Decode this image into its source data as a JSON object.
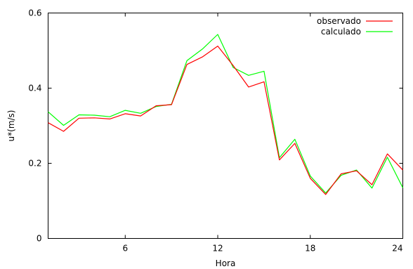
{
  "chart_data": {
    "type": "line",
    "title": "",
    "xlabel": "Hora",
    "ylabel": "u*(m/s)",
    "xlim": [
      1,
      24
    ],
    "ylim": [
      0,
      0.6
    ],
    "x_ticks": [
      6,
      12,
      18,
      24
    ],
    "y_ticks": [
      0,
      0.2,
      0.4,
      0.6
    ],
    "x_tick_labels": [
      "6",
      "12",
      "18",
      "24"
    ],
    "y_tick_labels": [
      "0",
      "0.2",
      "0.4",
      "0.6"
    ],
    "grid": false,
    "legend_position": "top-right",
    "x": [
      1,
      2,
      3,
      4,
      5,
      6,
      7,
      8,
      9,
      10,
      11,
      12,
      13,
      14,
      15,
      16,
      17,
      18,
      19,
      20,
      21,
      22,
      23,
      24
    ],
    "series": [
      {
        "name": "observado",
        "color": "#ff0000",
        "values": [
          0.308,
          0.285,
          0.32,
          0.321,
          0.318,
          0.332,
          0.326,
          0.353,
          0.356,
          0.463,
          0.483,
          0.512,
          0.46,
          0.403,
          0.417,
          0.209,
          0.253,
          0.16,
          0.117,
          0.172,
          0.18,
          0.143,
          0.225,
          0.182
        ]
      },
      {
        "name": "calculado",
        "color": "#00ff00",
        "values": [
          0.337,
          0.301,
          0.329,
          0.328,
          0.324,
          0.341,
          0.333,
          0.351,
          0.357,
          0.473,
          0.504,
          0.543,
          0.455,
          0.434,
          0.445,
          0.215,
          0.264,
          0.166,
          0.121,
          0.168,
          0.182,
          0.134,
          0.216,
          0.135
        ]
      }
    ]
  }
}
